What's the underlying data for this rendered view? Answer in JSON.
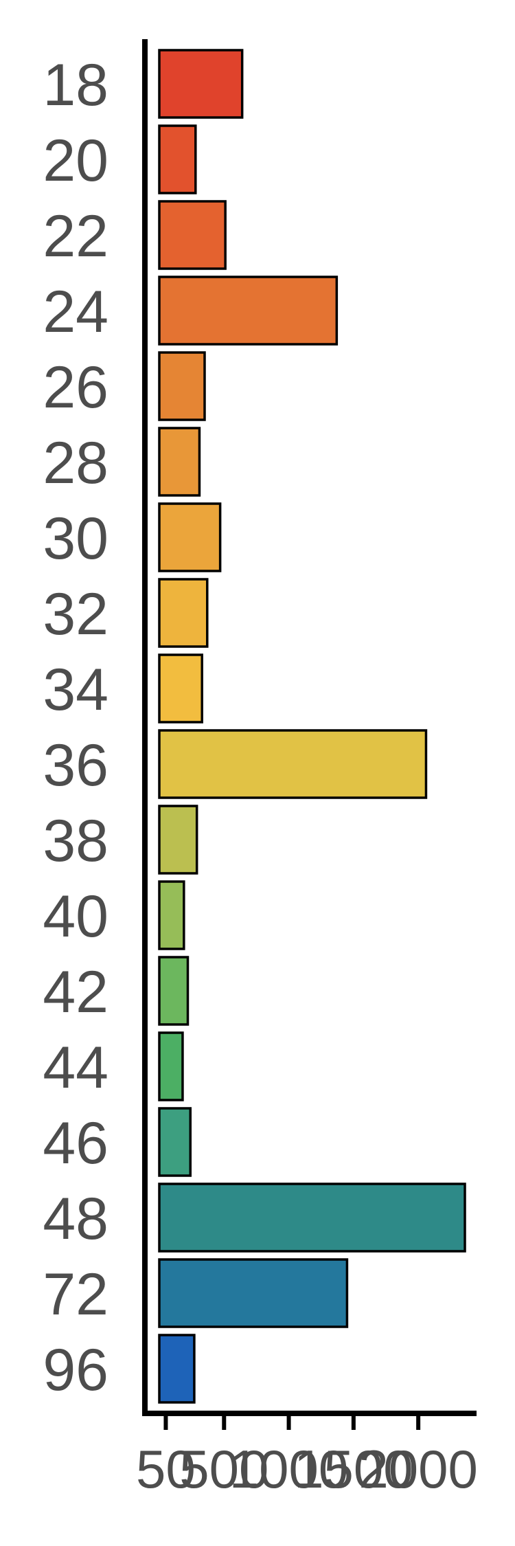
{
  "chart_data": {
    "type": "bar",
    "orientation": "horizontal",
    "categories": [
      "18",
      "20",
      "22",
      "24",
      "26",
      "28",
      "30",
      "32",
      "34",
      "36",
      "38",
      "40",
      "42",
      "44",
      "46",
      "48",
      "72",
      "96"
    ],
    "values": [
      640,
      280,
      510,
      1370,
      350,
      310,
      470,
      370,
      330,
      2060,
      290,
      190,
      220,
      180,
      240,
      2360,
      1450,
      270
    ],
    "colors": [
      "#e0432c",
      "#e2522d",
      "#e4622f",
      "#e47332",
      "#e58534",
      "#e89738",
      "#eba53b",
      "#eeb43d",
      "#f2bd3f",
      "#e1c245",
      "#bbbf50",
      "#96bd58",
      "#6cb75e",
      "#4caf64",
      "#3d9f80",
      "#2e8a88",
      "#24789d",
      "#1e63b8"
    ],
    "xticks": [
      "50",
      "500",
      "1000",
      "1500",
      "2000"
    ],
    "xtick_values": [
      50,
      500,
      1000,
      1500,
      2000
    ],
    "xlim": [
      0,
      2450
    ],
    "xlabel": "",
    "ylabel": "",
    "title": "",
    "grid": false
  }
}
